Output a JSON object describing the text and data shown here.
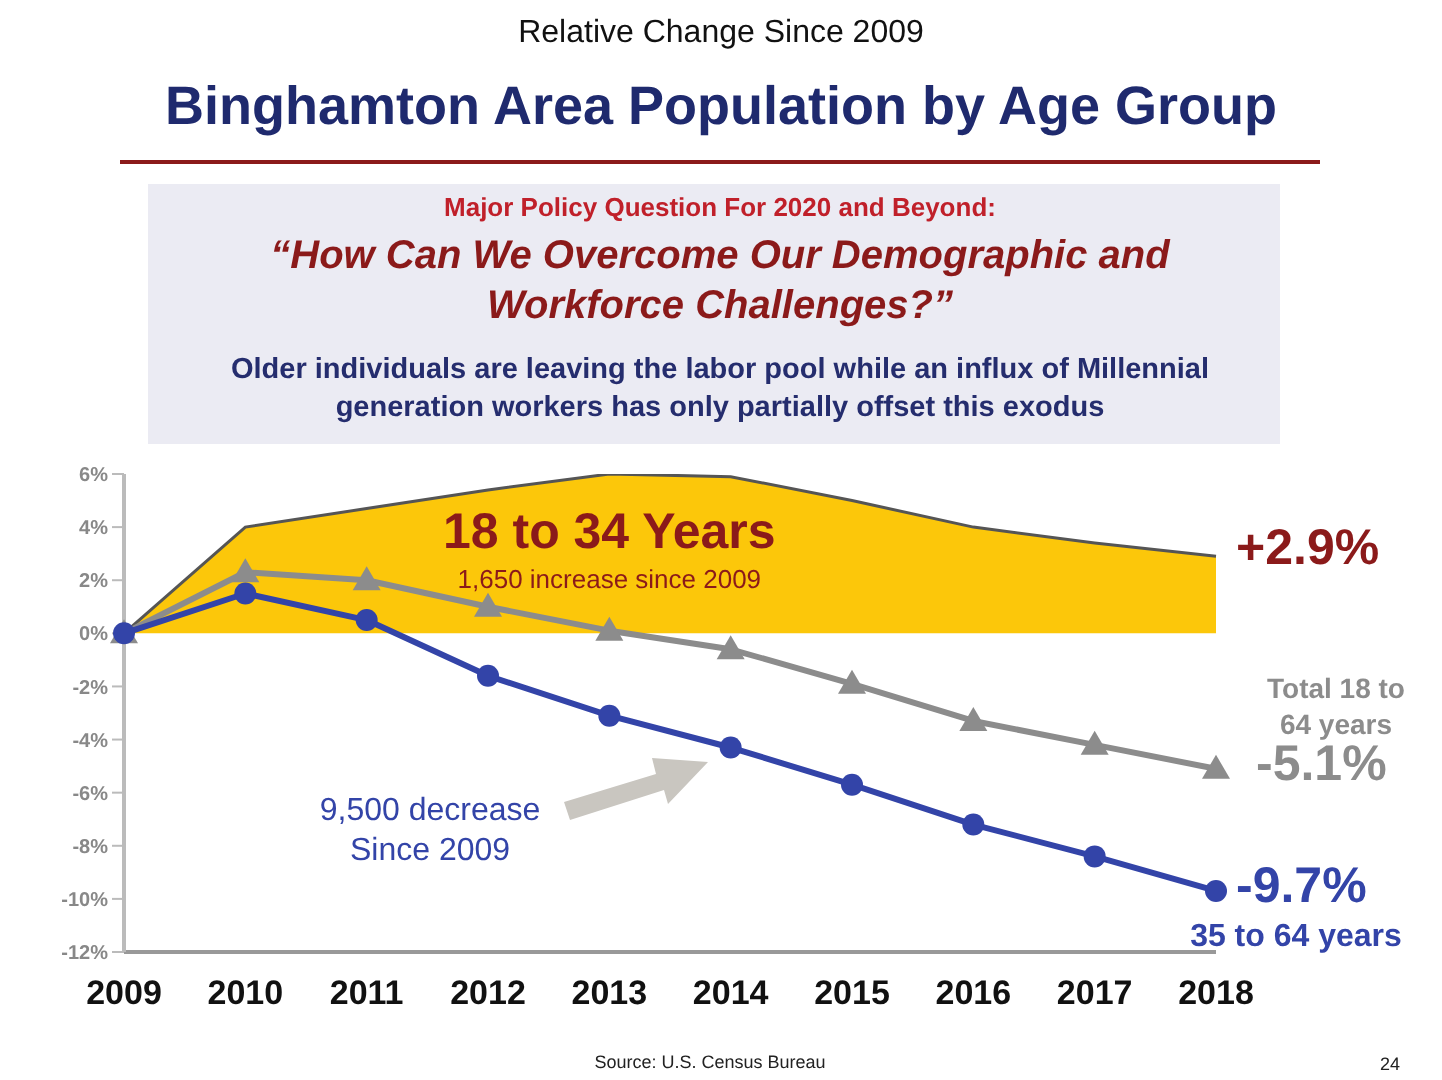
{
  "chart_data": {
    "type": "line",
    "subtitle": "Relative Change Since 2009",
    "title": "Binghamton Area Population by Age Group",
    "categories": [
      "2009",
      "2010",
      "2011",
      "2012",
      "2013",
      "2014",
      "2015",
      "2016",
      "2017",
      "2018"
    ],
    "series": [
      {
        "name": "18 to 34 Years",
        "type": "area",
        "color": "#fcc70a",
        "marker": "none",
        "values": [
          0,
          4.0,
          4.7,
          5.4,
          6.0,
          5.9,
          5.0,
          4.0,
          3.4,
          2.9
        ]
      },
      {
        "name": "Total 18 to 64 years",
        "color": "#8c8c8c",
        "marker": "triangle",
        "values": [
          0,
          2.3,
          2.0,
          1.0,
          0.1,
          -0.6,
          -1.9,
          -3.3,
          -4.2,
          -5.1
        ]
      },
      {
        "name": "35 to 64 years",
        "color": "#3344a8",
        "marker": "circle",
        "values": [
          0,
          1.5,
          0.5,
          -1.6,
          -3.1,
          -4.3,
          -5.7,
          -7.2,
          -8.4,
          -9.7
        ]
      }
    ],
    "ylim": [
      -12,
      6
    ],
    "yticks": [
      {
        "value": -12,
        "label": "-12%"
      },
      {
        "value": -10,
        "label": "-10%"
      },
      {
        "value": -8,
        "label": "-8%"
      },
      {
        "value": -6,
        "label": "-6%"
      },
      {
        "value": -4,
        "label": "-4%"
      },
      {
        "value": -2,
        "label": "-2%"
      },
      {
        "value": 0,
        "label": "0%"
      },
      {
        "value": 2,
        "label": "2%"
      },
      {
        "value": 4,
        "label": "4%"
      },
      {
        "value": 6,
        "label": "6%"
      }
    ],
    "grid": false,
    "legend": false,
    "annotations": [
      "Major Policy Question For 2020 and Beyond:",
      "“How Can We Overcome Our Demographic and Workforce Challenges?”",
      "Older individuals are leaving the labor pool while an influx of Millennial generation workers has only partially offset this exodus",
      {
        "text": "+2.9%",
        "x": "2018",
        "y": 2.9
      },
      {
        "text": "-5.1%",
        "x": "2018",
        "y": -5.1
      },
      {
        "text": "-9.7%",
        "x": "2018",
        "y": -9.7
      },
      "1,650 increase since 2009",
      "9,500 decrease Since 2009",
      "Source: U.S. Census Bureau",
      "24"
    ]
  }
}
